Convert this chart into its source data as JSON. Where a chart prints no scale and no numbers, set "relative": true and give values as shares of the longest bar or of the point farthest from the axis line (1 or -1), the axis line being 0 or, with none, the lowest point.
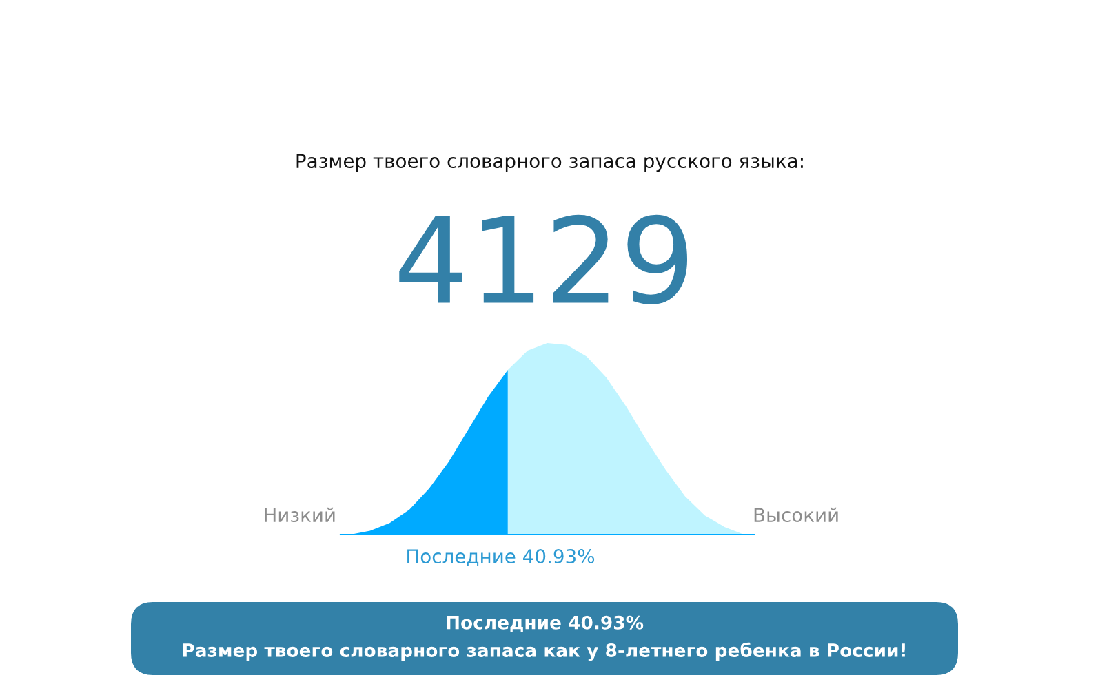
{
  "chart_data": {
    "type": "area",
    "relative": true,
    "title": "Размер твоего словарного запаса русского языка:",
    "subtitle": "4129",
    "categories": [
      null,
      null,
      null,
      null,
      null,
      null,
      null,
      null,
      null,
      null,
      null,
      null,
      null,
      null,
      null,
      null,
      null,
      null,
      null,
      null,
      null
    ],
    "series": [
      {
        "color": "#00aaff",
        "values": [
          0.0,
          0.02,
          0.06,
          0.13,
          0.24,
          0.38,
          0.55,
          0.72,
          0.86,
          null,
          null,
          null,
          null,
          null,
          null,
          null,
          null,
          null,
          null,
          null,
          null
        ]
      },
      {
        "color": "#bff4ff",
        "values": [
          null,
          null,
          null,
          null,
          null,
          null,
          null,
          null,
          0.86,
          0.96,
          1.0,
          0.99,
          0.93,
          0.82,
          0.67,
          0.5,
          0.34,
          0.2,
          0.1,
          0.04,
          0.0
        ]
      }
    ],
    "annotations": [
      "Низкий",
      "Высокий",
      "Последние 40.93%",
      "Последние 40.93%",
      "Размер твоего словарного запаса как у 8-летнего ребенка в России!"
    ]
  }
}
